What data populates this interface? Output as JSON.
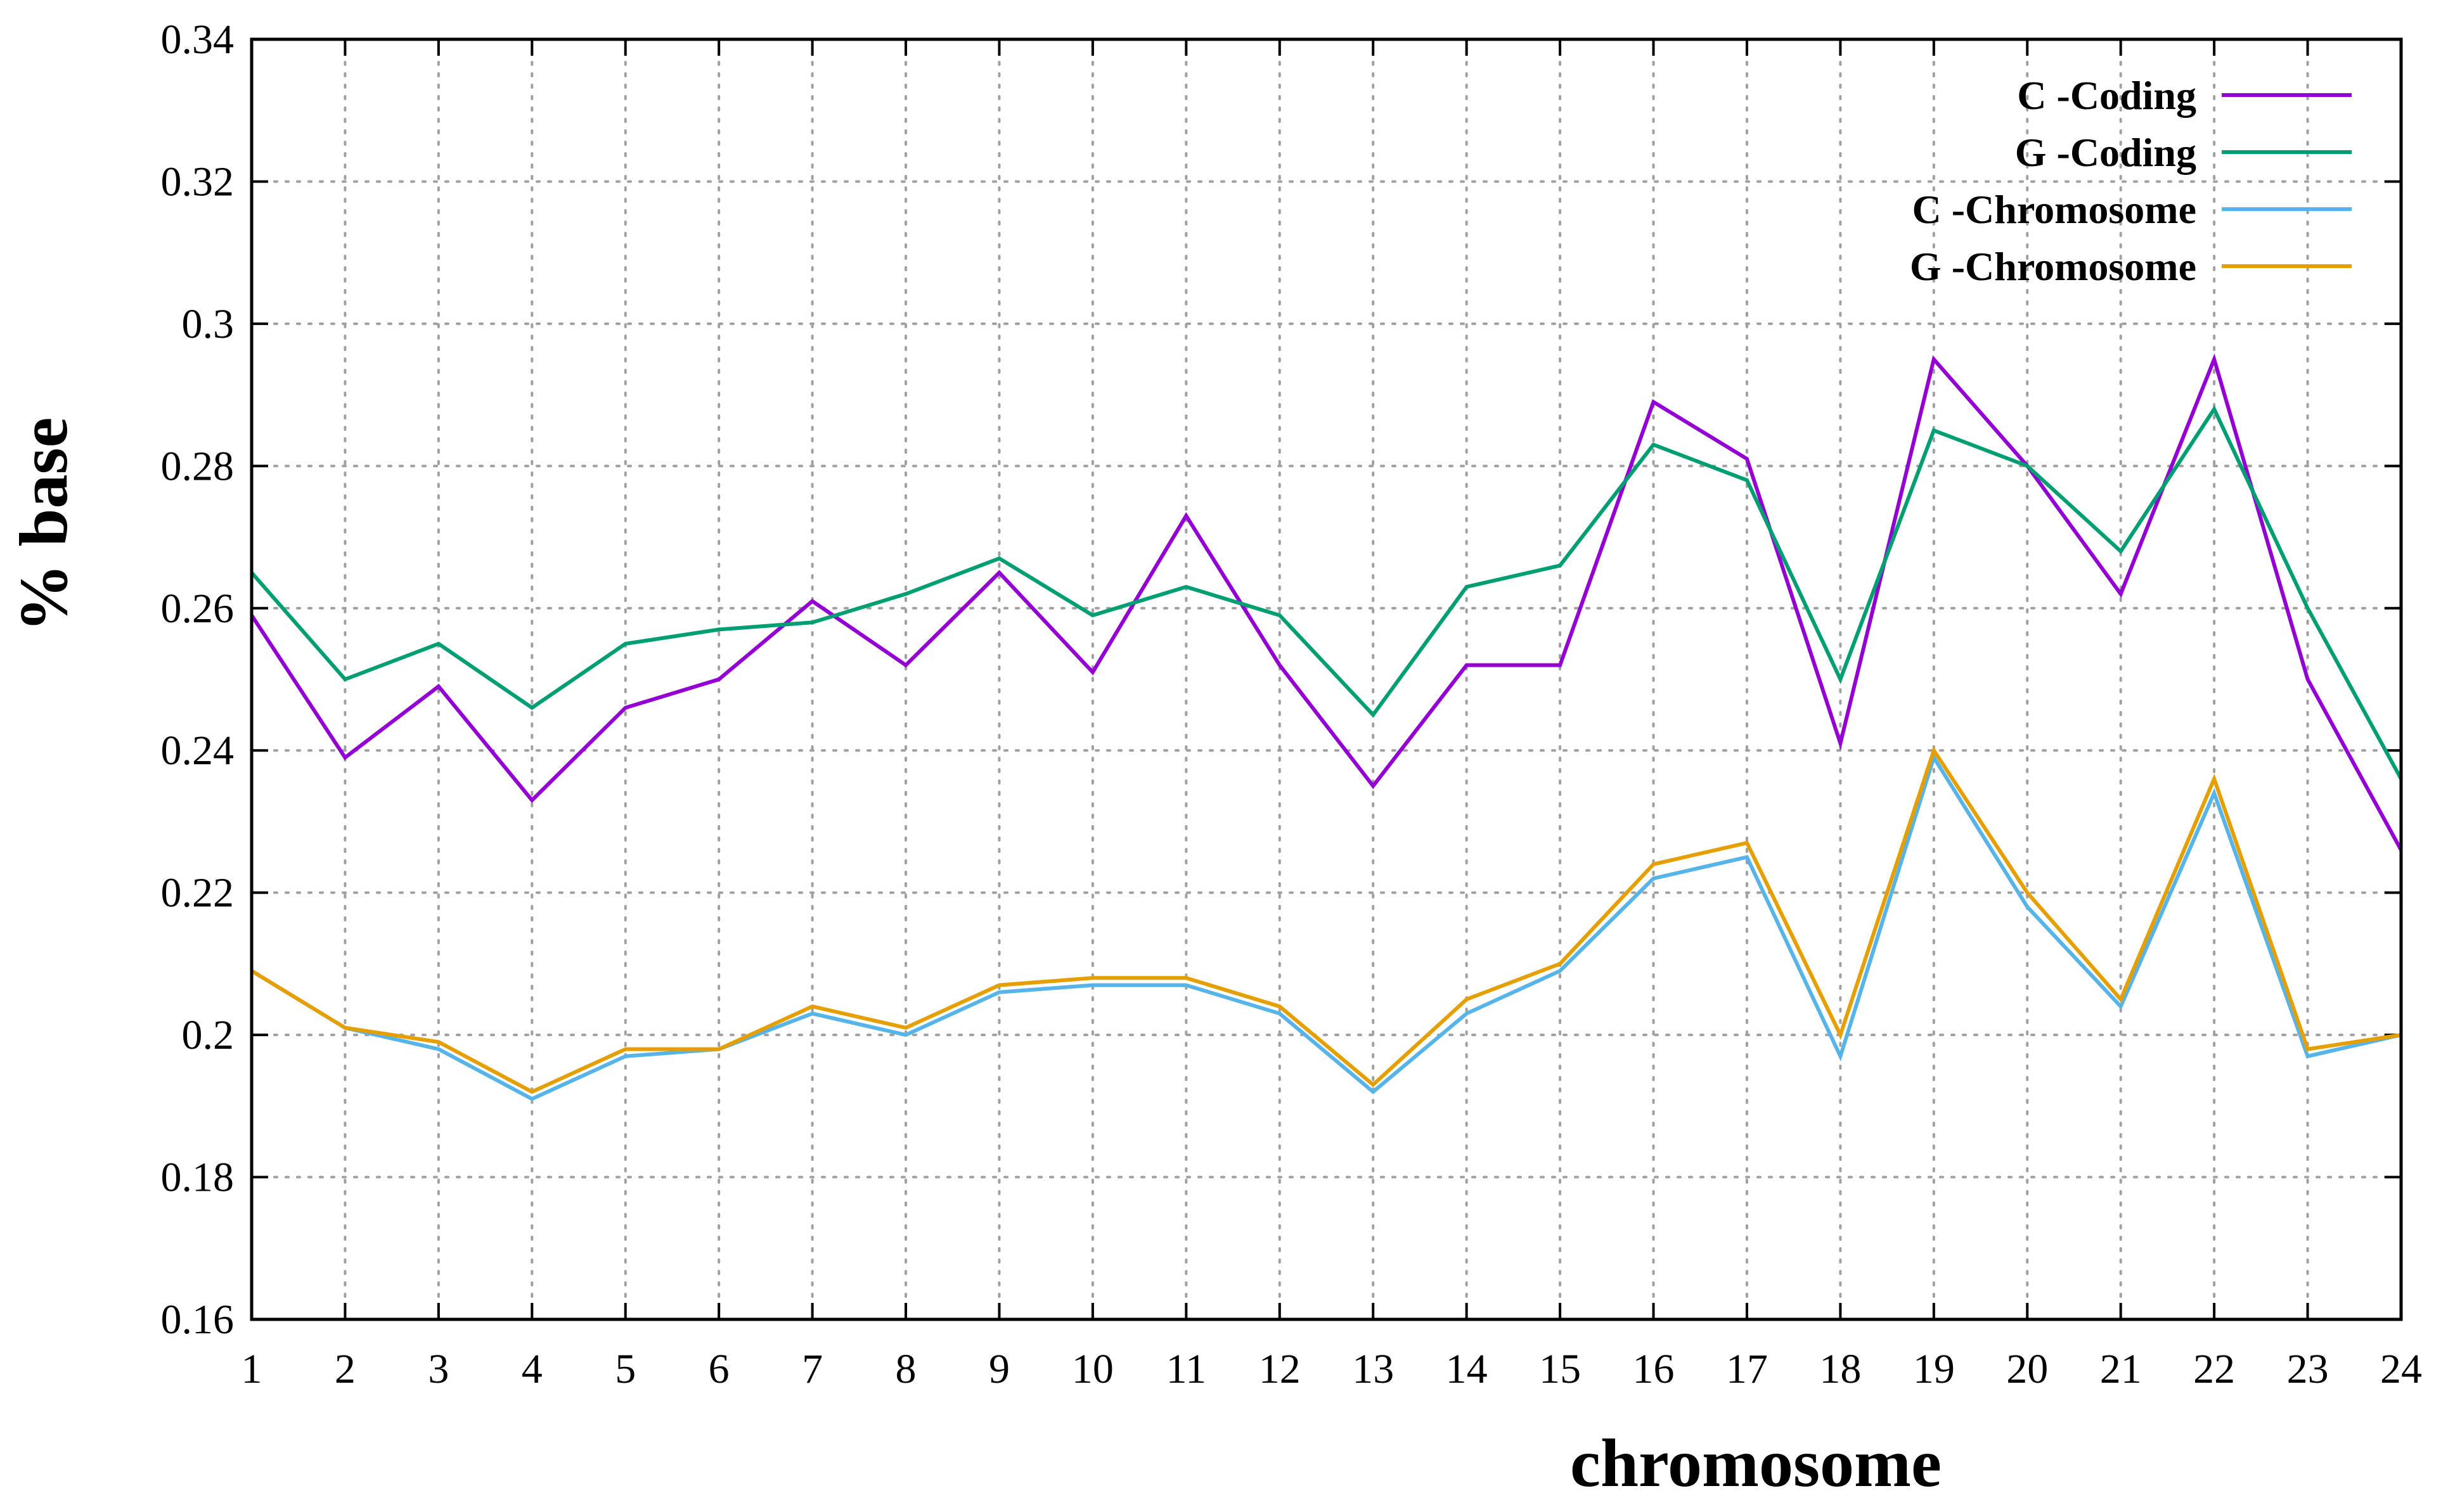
{
  "chart_data": {
    "type": "line",
    "xlabel": "chromosome",
    "ylabel": "% base",
    "ylim": [
      0.16,
      0.34
    ],
    "yticks": [
      "0.16",
      "0.18",
      "0.2",
      "0.22",
      "0.24",
      "0.26",
      "0.28",
      "0.3",
      "0.32",
      "0.34"
    ],
    "ytick_values": [
      0.16,
      0.18,
      0.2,
      0.22,
      0.24,
      0.26,
      0.28,
      0.3,
      0.32,
      0.34
    ],
    "categories": [
      "1",
      "2",
      "3",
      "4",
      "5",
      "6",
      "7",
      "8",
      "9",
      "10",
      "11",
      "12",
      "13",
      "14",
      "15",
      "16",
      "17",
      "18",
      "19",
      "20",
      "21",
      "22",
      "23",
      "24"
    ],
    "grid": true,
    "legend_position": "top-right",
    "series": [
      {
        "name": "C -Coding",
        "color": "#9400d3",
        "values": [
          0.259,
          0.239,
          0.249,
          0.233,
          0.246,
          0.25,
          0.261,
          0.252,
          0.265,
          0.251,
          0.273,
          0.252,
          0.235,
          0.252,
          0.252,
          0.289,
          0.281,
          0.241,
          0.295,
          0.28,
          0.262,
          0.295,
          0.25,
          0.226
        ]
      },
      {
        "name": "G -Coding",
        "color": "#009e73",
        "values": [
          0.265,
          0.25,
          0.255,
          0.246,
          0.255,
          0.257,
          0.258,
          0.262,
          0.267,
          0.259,
          0.263,
          0.259,
          0.245,
          0.263,
          0.266,
          0.283,
          0.278,
          0.25,
          0.285,
          0.28,
          0.268,
          0.288,
          0.26,
          0.236
        ]
      },
      {
        "name": "C -Chromosome",
        "color": "#56b4e9",
        "values": [
          0.209,
          0.201,
          0.198,
          0.191,
          0.197,
          0.198,
          0.203,
          0.2,
          0.206,
          0.207,
          0.207,
          0.203,
          0.192,
          0.203,
          0.209,
          0.222,
          0.225,
          0.197,
          0.239,
          0.218,
          0.204,
          0.234,
          0.197,
          0.2
        ]
      },
      {
        "name": "G -Chromosome",
        "color": "#e69f00",
        "values": [
          0.209,
          0.201,
          0.199,
          0.192,
          0.198,
          0.198,
          0.204,
          0.201,
          0.207,
          0.208,
          0.208,
          0.204,
          0.193,
          0.205,
          0.21,
          0.224,
          0.227,
          0.2,
          0.24,
          0.22,
          0.205,
          0.236,
          0.198,
          0.2
        ]
      }
    ]
  }
}
